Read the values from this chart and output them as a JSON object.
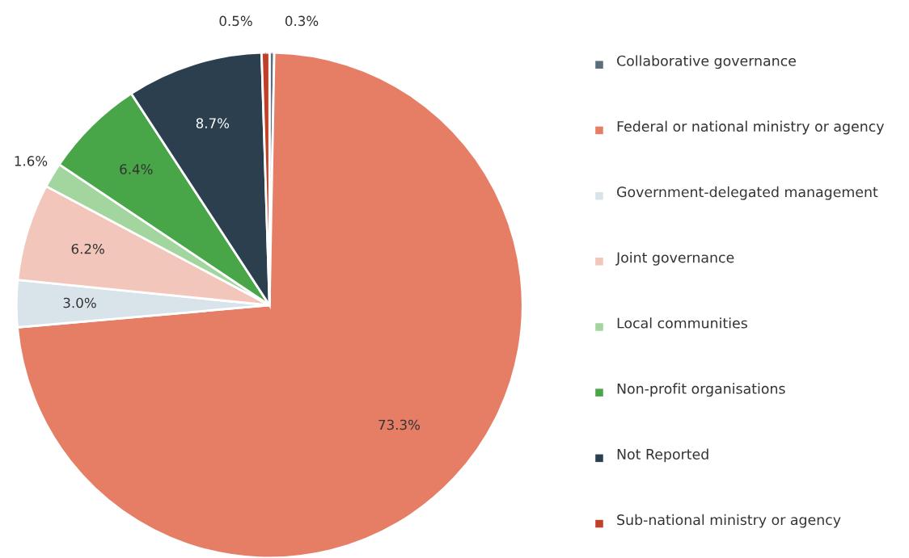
{
  "chart_data": {
    "type": "pie",
    "categories": [
      "Collaborative governance",
      "Federal or national ministry or agency",
      "Government-delegated management",
      "Joint governance",
      "Local communities",
      "Non-profit organisations",
      "Not Reported",
      "Sub-national ministry or agency"
    ],
    "values": [
      0.3,
      73.3,
      3.0,
      6.2,
      1.6,
      6.4,
      8.7,
      0.5
    ],
    "colors": [
      "#5b6f7b",
      "#e67e66",
      "#d9e4ea",
      "#f2c6ba",
      "#a3d69e",
      "#48a548",
      "#2b3f4e",
      "#c0412a"
    ],
    "value_labels": [
      "0.3%",
      "73.3%",
      "3.0%",
      "6.2%",
      "1.6%",
      "6.4%",
      "8.7%",
      "0.5%"
    ],
    "legend": "right"
  }
}
